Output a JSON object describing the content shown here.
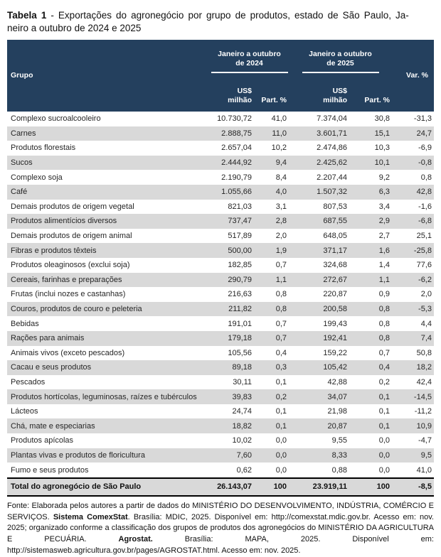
{
  "title": {
    "bold": "Tabela 1",
    "line1_rest": " - Exportações do agronegócio por grupo de produtos, estado de São Paulo, Ja-",
    "line2": "neiro a outubro de 2024 e 2025"
  },
  "colors": {
    "header_bg": "#24405e",
    "alt_row_bg": "#d9d9d9",
    "header_text": "#ffffff"
  },
  "table": {
    "header": {
      "grupo": "Grupo",
      "period_line1": "Janeiro a outubro",
      "period_2024_line2": "de 2024",
      "period_2025_line2": "de 2025",
      "usd_line1": "US$",
      "usd_line2": "milhão",
      "part": "Part. %",
      "var": "Var. %"
    },
    "rows": [
      {
        "name": "Complexo sucroalcooleiro",
        "usd_2024": "10.730,72",
        "part_2024": "41,0",
        "usd_2025": "7.374,04",
        "part_2025": "30,8",
        "var": "-31,3"
      },
      {
        "name": "Carnes",
        "usd_2024": "2.888,75",
        "part_2024": "11,0",
        "usd_2025": "3.601,71",
        "part_2025": "15,1",
        "var": "24,7"
      },
      {
        "name": "Produtos florestais",
        "usd_2024": "2.657,04",
        "part_2024": "10,2",
        "usd_2025": "2.474,86",
        "part_2025": "10,3",
        "var": "-6,9"
      },
      {
        "name": "Sucos",
        "usd_2024": "2.444,92",
        "part_2024": "9,4",
        "usd_2025": "2.425,62",
        "part_2025": "10,1",
        "var": "-0,8"
      },
      {
        "name": "Complexo soja",
        "usd_2024": "2.190,79",
        "part_2024": "8,4",
        "usd_2025": "2.207,44",
        "part_2025": "9,2",
        "var": "0,8"
      },
      {
        "name": "Café",
        "usd_2024": "1.055,66",
        "part_2024": "4,0",
        "usd_2025": "1.507,32",
        "part_2025": "6,3",
        "var": "42,8"
      },
      {
        "name": "Demais produtos de origem vegetal",
        "usd_2024": "821,03",
        "part_2024": "3,1",
        "usd_2025": "807,53",
        "part_2025": "3,4",
        "var": "-1,6"
      },
      {
        "name": "Produtos alimentícios diversos",
        "usd_2024": "737,47",
        "part_2024": "2,8",
        "usd_2025": "687,55",
        "part_2025": "2,9",
        "var": "-6,8"
      },
      {
        "name": "Demais produtos de origem animal",
        "usd_2024": "517,89",
        "part_2024": "2,0",
        "usd_2025": "648,05",
        "part_2025": "2,7",
        "var": "25,1"
      },
      {
        "name": "Fibras e produtos têxteis",
        "usd_2024": "500,00",
        "part_2024": "1,9",
        "usd_2025": "371,17",
        "part_2025": "1,6",
        "var": "-25,8"
      },
      {
        "name": "Produtos oleaginosos (exclui soja)",
        "usd_2024": "182,85",
        "part_2024": "0,7",
        "usd_2025": "324,68",
        "part_2025": "1,4",
        "var": "77,6"
      },
      {
        "name": "Cereais, farinhas e preparações",
        "usd_2024": "290,79",
        "part_2024": "1,1",
        "usd_2025": "272,67",
        "part_2025": "1,1",
        "var": "-6,2"
      },
      {
        "name": "Frutas (inclui nozes e castanhas)",
        "usd_2024": "216,63",
        "part_2024": "0,8",
        "usd_2025": "220,87",
        "part_2025": "0,9",
        "var": "2,0"
      },
      {
        "name": "Couros, produtos de couro e peleteria",
        "usd_2024": "211,82",
        "part_2024": "0,8",
        "usd_2025": "200,58",
        "part_2025": "0,8",
        "var": "-5,3"
      },
      {
        "name": "Bebidas",
        "usd_2024": "191,01",
        "part_2024": "0,7",
        "usd_2025": "199,43",
        "part_2025": "0,8",
        "var": "4,4"
      },
      {
        "name": "Rações para animais",
        "usd_2024": "179,18",
        "part_2024": "0,7",
        "usd_2025": "192,41",
        "part_2025": "0,8",
        "var": "7,4"
      },
      {
        "name": "Animais vivos (exceto pescados)",
        "usd_2024": "105,56",
        "part_2024": "0,4",
        "usd_2025": "159,22",
        "part_2025": "0,7",
        "var": "50,8"
      },
      {
        "name": "Cacau e seus produtos",
        "usd_2024": "89,18",
        "part_2024": "0,3",
        "usd_2025": "105,42",
        "part_2025": "0,4",
        "var": "18,2"
      },
      {
        "name": "Pescados",
        "usd_2024": "30,11",
        "part_2024": "0,1",
        "usd_2025": "42,88",
        "part_2025": "0,2",
        "var": "42,4"
      },
      {
        "name": "Produtos hortícolas, leguminosas, raízes e tubérculos",
        "usd_2024": "39,83",
        "part_2024": "0,2",
        "usd_2025": "34,07",
        "part_2025": "0,1",
        "var": "-14,5"
      },
      {
        "name": "Lácteos",
        "usd_2024": "24,74",
        "part_2024": "0,1",
        "usd_2025": "21,98",
        "part_2025": "0,1",
        "var": "-11,2"
      },
      {
        "name": "Chá, mate e especiarias",
        "usd_2024": "18,82",
        "part_2024": "0,1",
        "usd_2025": "20,87",
        "part_2025": "0,1",
        "var": "10,9"
      },
      {
        "name": "Produtos apícolas",
        "usd_2024": "10,02",
        "part_2024": "0,0",
        "usd_2025": "9,55",
        "part_2025": "0,0",
        "var": "-4,7"
      },
      {
        "name": "Plantas vivas e produtos de floricultura",
        "usd_2024": "7,60",
        "part_2024": "0,0",
        "usd_2025": "8,33",
        "part_2025": "0,0",
        "var": "9,5"
      },
      {
        "name": "Fumo e seus produtos",
        "usd_2024": "0,62",
        "part_2024": "0,0",
        "usd_2025": "0,88",
        "part_2025": "0,0",
        "var": "41,0"
      }
    ],
    "total": {
      "name": "Total do agronegócio de São Paulo",
      "usd_2024": "26.143,07",
      "part_2024": "100",
      "usd_2025": "23.919,11",
      "part_2025": "100",
      "var": "-8,5"
    }
  },
  "source": {
    "segments": [
      {
        "text": "Fonte: Elaborada pelos autores a partir de dados do MINISTÉRIO DO DESENVOLVIMENTO, INDÚSTRIA, COMÉRCIO E SERVIÇOS. ",
        "bold": false
      },
      {
        "text": "Sistema ComexStat",
        "bold": true
      },
      {
        "text": ". Brasília: MDIC, 2025. Disponível em: http://comexstat.mdic.gov.br. Acesso em: nov. 2025; organizado conforme a classificação dos grupos de produtos dos agronegócios do MINISTÉRIO DA AGRICULTURA E PECUÁRIA. ",
        "bold": false
      },
      {
        "text": "Agrostat.",
        "bold": true
      },
      {
        "text": " Brasília: MAPA, 2025. Disponível em: http://sistemasweb.agricultura.gov.br/pages/AGROSTAT.html. Acesso em: nov. 2025.",
        "bold": false
      }
    ]
  }
}
